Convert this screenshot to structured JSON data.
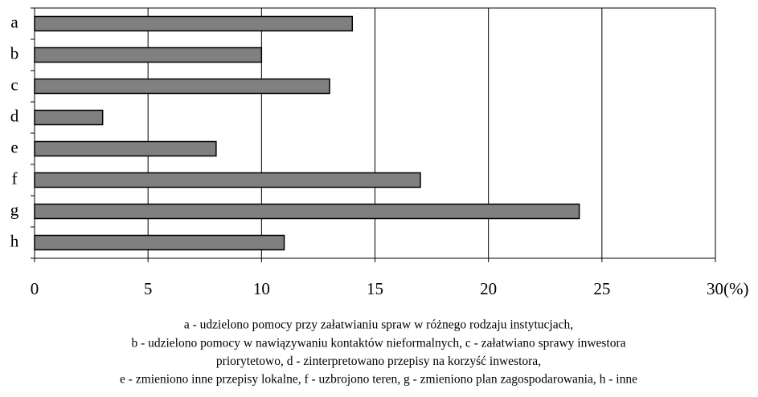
{
  "chart_data": {
    "type": "bar",
    "orientation": "horizontal",
    "categories": [
      "a",
      "b",
      "c",
      "d",
      "e",
      "f",
      "g",
      "h"
    ],
    "values": [
      14,
      10,
      13,
      3,
      8,
      17,
      24,
      11
    ],
    "color": "#808080",
    "xlim": [
      0,
      30
    ],
    "xticks": [
      0,
      5,
      10,
      15,
      20,
      25,
      30
    ],
    "xlabel": "(%)",
    "grid": true,
    "caption": [
      "a - udzielono pomocy przy załatwianiu spraw w różnego rodzaju instytucjach,",
      "b - udzielono pomocy w nawiązywaniu kontaktów nieformalnych, c - załatwiano sprawy inwestora",
      "priorytetowo, d - zinterpretowano przepisy na korzyść inwestora,",
      "e - zmieniono inne przepisy lokalne, f - uzbrojono teren, g - zmieniono plan zagospodarowania, h - inne"
    ]
  }
}
